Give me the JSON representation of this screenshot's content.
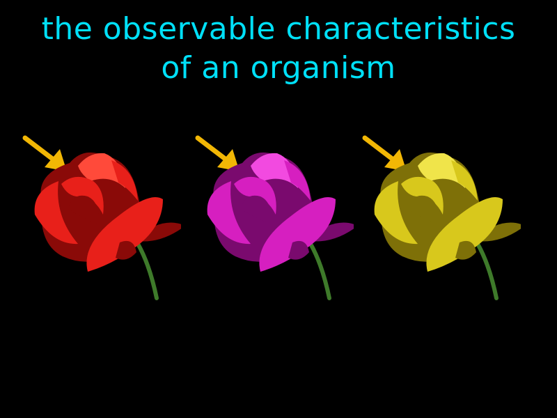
{
  "definition": {
    "line1": "the observable characteristics",
    "line2": "of an organism"
  },
  "colors": {
    "background": "#000000",
    "text": "#00E0F8",
    "arrow": "#F2B705",
    "stem": "#3E7A2A"
  },
  "roses": [
    {
      "name": "red-rose",
      "petal": "#E8201A",
      "shade": "#8A0A08",
      "highlight": "#FF4A3A"
    },
    {
      "name": "magenta-rose",
      "petal": "#D61FC0",
      "shade": "#7A0A6E",
      "highlight": "#F24AE0"
    },
    {
      "name": "yellow-rose",
      "petal": "#D8C81C",
      "shade": "#7E7008",
      "highlight": "#F0E44A"
    }
  ]
}
